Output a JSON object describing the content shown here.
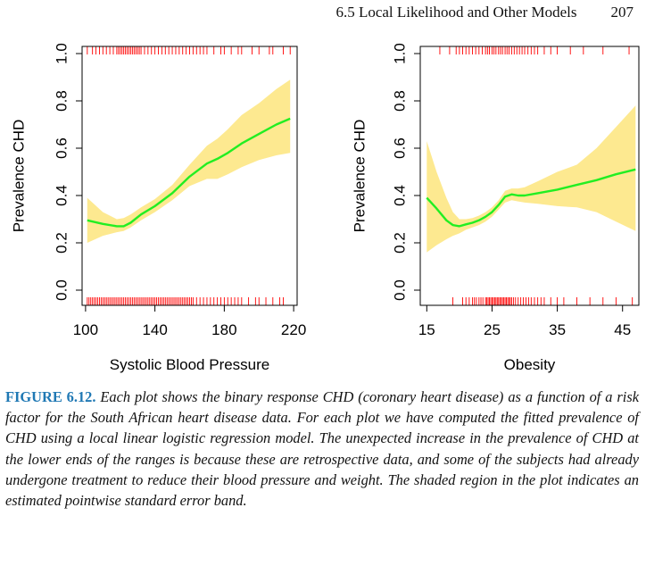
{
  "header": {
    "section": "6.5 Local Likelihood and Other Models",
    "page_number": "207"
  },
  "colors": {
    "band": "#fde990",
    "fit": "#22ee22",
    "rug": "#ff0000",
    "axis": "#000000",
    "caption_label": "#1f78b4"
  },
  "chart_data": [
    {
      "type": "line",
      "xlabel": "Systolic Blood Pressure",
      "ylabel": "Prevalence CHD",
      "xlim": [
        98,
        222
      ],
      "ylim": [
        0,
        1
      ],
      "xticks": [
        100,
        140,
        180,
        220
      ],
      "yticks": [
        0.0,
        0.2,
        0.4,
        0.6,
        0.8,
        1.0
      ],
      "ytick_labels": [
        "0.0",
        "0.2",
        "0.4",
        "0.6",
        "0.8",
        "1.0"
      ],
      "x": [
        101,
        110,
        118,
        122,
        126,
        132,
        140,
        150,
        160,
        170,
        176,
        182,
        190,
        200,
        210,
        218
      ],
      "fit": [
        0.295,
        0.28,
        0.27,
        0.27,
        0.285,
        0.32,
        0.355,
        0.41,
        0.48,
        0.535,
        0.555,
        0.58,
        0.62,
        0.66,
        0.7,
        0.725
      ],
      "lower": [
        0.2,
        0.23,
        0.245,
        0.25,
        0.265,
        0.295,
        0.33,
        0.38,
        0.44,
        0.47,
        0.47,
        0.49,
        0.52,
        0.55,
        0.57,
        0.58
      ],
      "upper": [
        0.39,
        0.33,
        0.3,
        0.305,
        0.32,
        0.35,
        0.385,
        0.445,
        0.53,
        0.61,
        0.64,
        0.68,
        0.74,
        0.79,
        0.85,
        0.89
      ],
      "rug_top": [
        101,
        104,
        106,
        108,
        110,
        112,
        114,
        116,
        118,
        119,
        120,
        121,
        122,
        123,
        124,
        125,
        126,
        127,
        128,
        129,
        130,
        131,
        132,
        134,
        136,
        138,
        140,
        142,
        144,
        146,
        148,
        150,
        152,
        154,
        156,
        158,
        160,
        162,
        164,
        166,
        168,
        170,
        174,
        178,
        180,
        184,
        188,
        190,
        196,
        200,
        206,
        208,
        214,
        218
      ],
      "rug_bottom": [
        101,
        102,
        103,
        104,
        105,
        106,
        107,
        108,
        109,
        110,
        111,
        112,
        113,
        114,
        115,
        116,
        117,
        118,
        119,
        120,
        121,
        122,
        123,
        124,
        125,
        126,
        127,
        128,
        129,
        130,
        131,
        132,
        133,
        134,
        135,
        136,
        137,
        138,
        139,
        140,
        141,
        142,
        143,
        144,
        145,
        146,
        147,
        148,
        149,
        150,
        151,
        152,
        153,
        154,
        155,
        156,
        157,
        158,
        159,
        160,
        161,
        162,
        164,
        166,
        168,
        170,
        172,
        174,
        176,
        178,
        180,
        182,
        184,
        186,
        188,
        190,
        194,
        198,
        200,
        204,
        208,
        212,
        214
      ]
    },
    {
      "type": "line",
      "xlabel": "Obesity",
      "ylabel": "Prevalence CHD",
      "xlim": [
        14,
        47.5
      ],
      "ylim": [
        0,
        1
      ],
      "xticks": [
        15,
        25,
        35,
        45
      ],
      "yticks": [
        0.0,
        0.2,
        0.4,
        0.6,
        0.8,
        1.0
      ],
      "ytick_labels": [
        "0.0",
        "0.2",
        "0.4",
        "0.6",
        "0.8",
        "1.0"
      ],
      "x": [
        15,
        16.5,
        18,
        19,
        20,
        21,
        22,
        23,
        24,
        25,
        26,
        27,
        28,
        29,
        30,
        32,
        35,
        38,
        41,
        44,
        47
      ],
      "fit": [
        0.39,
        0.345,
        0.295,
        0.275,
        0.27,
        0.278,
        0.285,
        0.295,
        0.31,
        0.33,
        0.36,
        0.395,
        0.405,
        0.4,
        0.4,
        0.41,
        0.425,
        0.445,
        0.465,
        0.49,
        0.51
      ],
      "lower": [
        0.16,
        0.19,
        0.215,
        0.23,
        0.24,
        0.255,
        0.265,
        0.275,
        0.29,
        0.31,
        0.34,
        0.37,
        0.38,
        0.375,
        0.37,
        0.365,
        0.355,
        0.35,
        0.33,
        0.29,
        0.25
      ],
      "upper": [
        0.63,
        0.5,
        0.39,
        0.33,
        0.3,
        0.3,
        0.305,
        0.315,
        0.33,
        0.35,
        0.38,
        0.42,
        0.43,
        0.43,
        0.435,
        0.46,
        0.5,
        0.53,
        0.6,
        0.69,
        0.78
      ],
      "rug_top": [
        17,
        18.5,
        19.5,
        20,
        20.5,
        21,
        21.5,
        22,
        22.5,
        23,
        23.5,
        24,
        24.3,
        24.6,
        25,
        25.3,
        25.6,
        26,
        26.3,
        26.6,
        27,
        27.3,
        27.6,
        28,
        28.4,
        28.8,
        29.2,
        29.6,
        30,
        30.5,
        31,
        31.5,
        32,
        33,
        34,
        35,
        37,
        39,
        42,
        46
      ],
      "rug_bottom": [
        19,
        20.5,
        21,
        21.5,
        22,
        22.3,
        22.6,
        23,
        23.3,
        23.6,
        24,
        24.2,
        24.4,
        24.6,
        24.8,
        25,
        25.2,
        25.4,
        25.6,
        25.8,
        26,
        26.2,
        26.4,
        26.6,
        26.8,
        27,
        27.2,
        27.4,
        27.6,
        27.8,
        28,
        28.3,
        28.6,
        29,
        29.4,
        29.8,
        30.2,
        30.6,
        31,
        31.5,
        32,
        32.5,
        33,
        34,
        35,
        36,
        38,
        40,
        42,
        44,
        46.5
      ]
    }
  ],
  "caption": {
    "label": "FIGURE 6.12.",
    "text": "Each plot shows the binary response CHD (coronary heart disease) as a function of a risk factor for the South African heart disease data. For each plot we have computed the fitted prevalence of CHD using a local linear logistic regression model. The unexpected increase in the prevalence of CHD at the lower ends of the ranges is because these are retrospective data, and some of the subjects had already undergone treatment to reduce their blood pressure and weight. The shaded region in the plot indicates an estimated pointwise standard error band."
  }
}
